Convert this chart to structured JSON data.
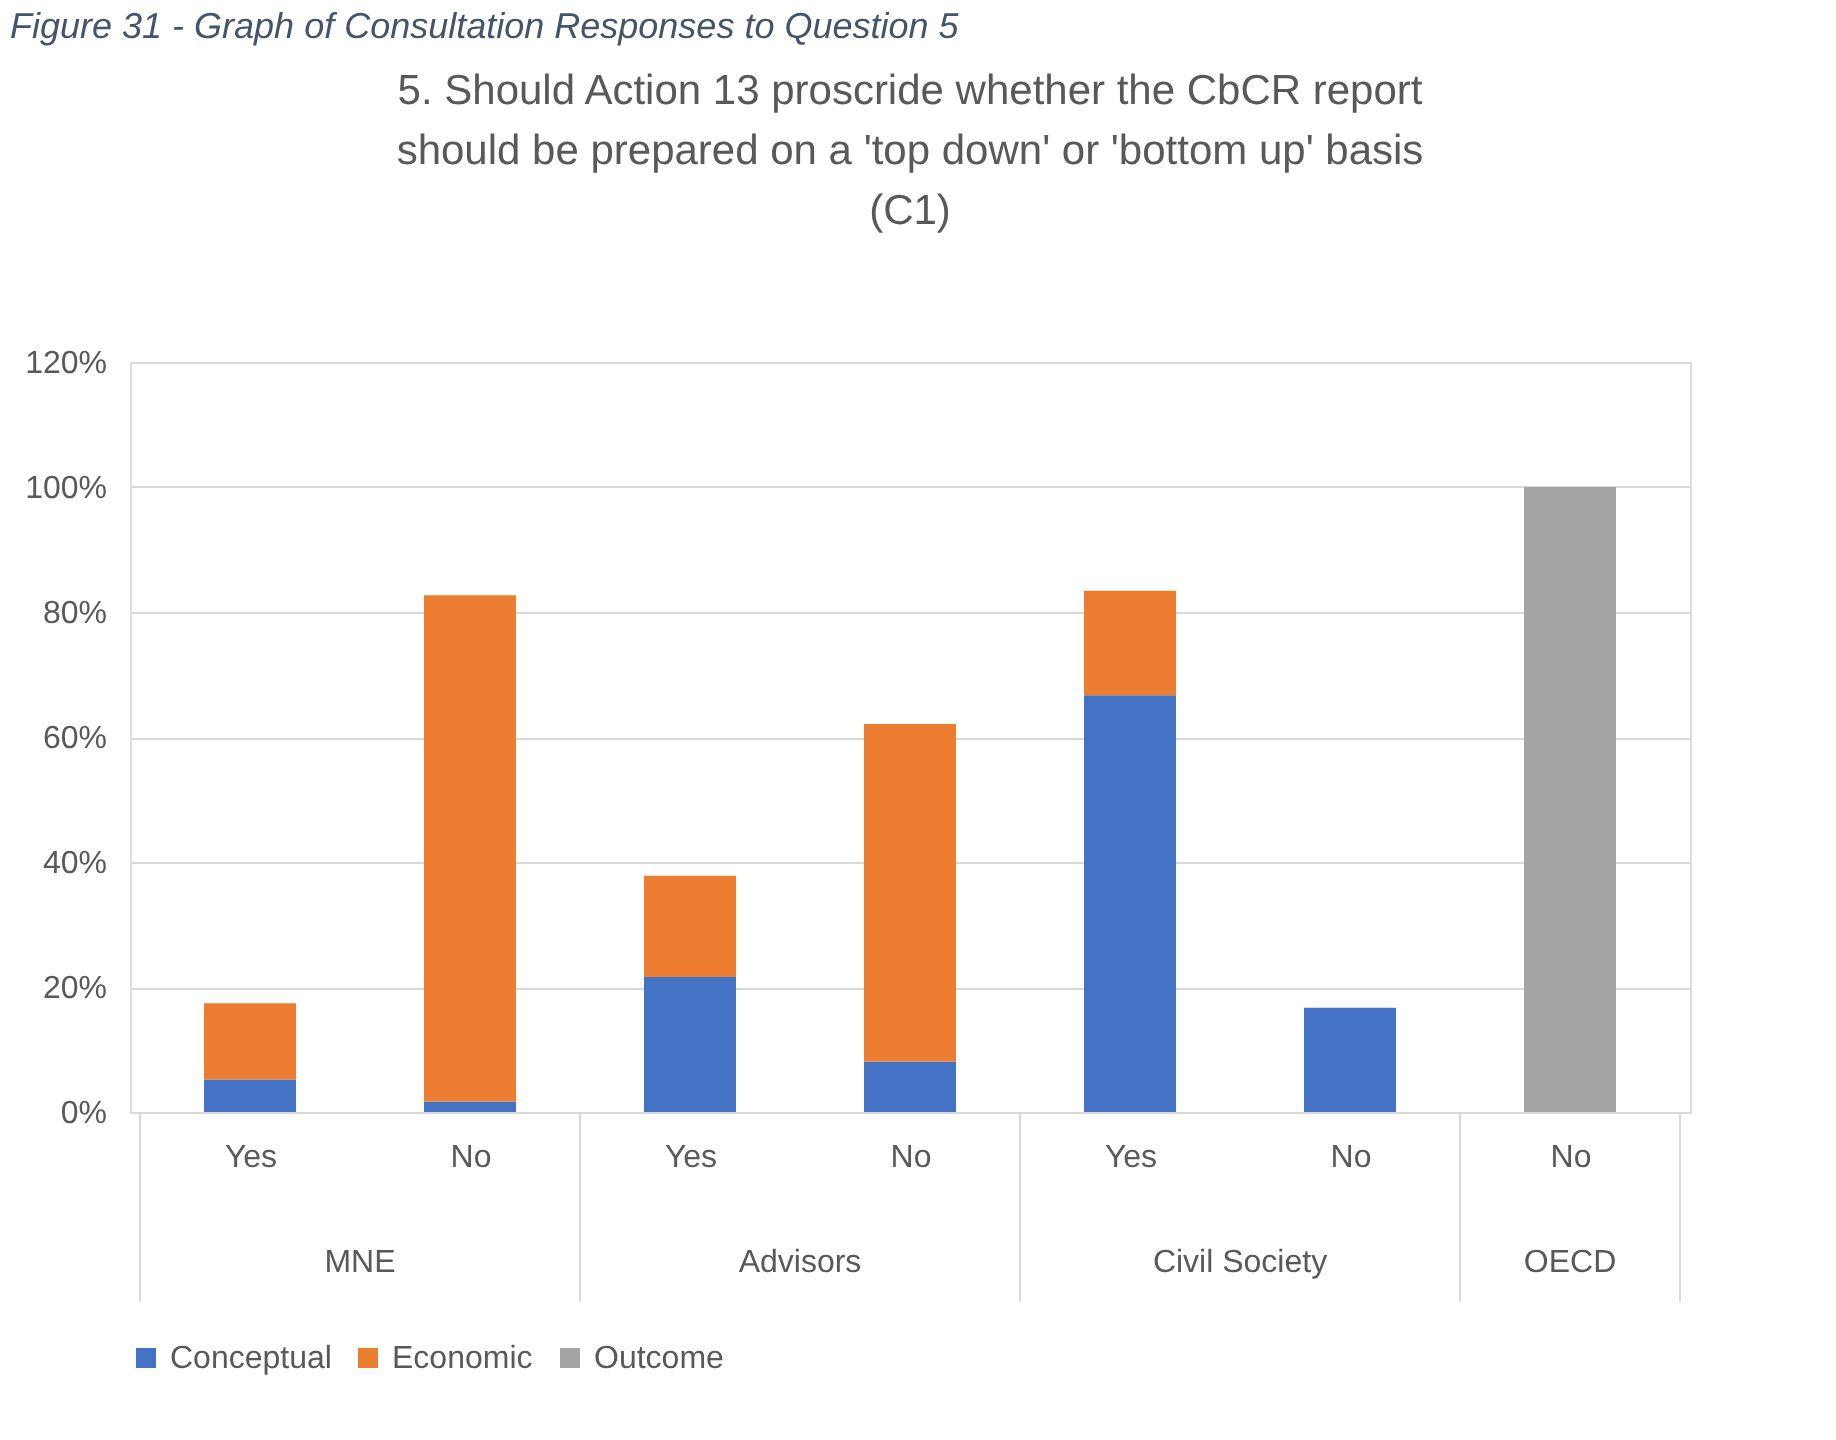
{
  "chart_data": {
    "type": "bar",
    "stacked": true,
    "title": "5. Should Action 13 proscride whether the CbCR report should be prepared on a 'top down' or 'bottom up' basis (C1)",
    "categories": [
      "Yes",
      "No",
      "Yes",
      "No",
      "Yes",
      "No",
      "No"
    ],
    "series": [
      {
        "name": "Conceptual",
        "color": "#4472c4",
        "values": [
          5.2,
          1.7,
          21.6,
          8.1,
          66.7,
          16.7,
          null
        ]
      },
      {
        "name": "Economic",
        "color": "#ed7d31",
        "values": [
          12.2,
          81.0,
          16.2,
          54.0,
          16.7,
          null,
          null
        ]
      },
      {
        "name": "Outcome",
        "color": "#a5a5a5",
        "values": [
          null,
          null,
          null,
          null,
          null,
          null,
          100
        ]
      }
    ],
    "ylim": [
      0,
      120
    ],
    "yticks": [
      {
        "value": 0,
        "label": "0%"
      },
      {
        "value": 20,
        "label": "20%"
      },
      {
        "value": 40,
        "label": "40%"
      },
      {
        "value": 60,
        "label": "60%"
      },
      {
        "value": 80,
        "label": "80%"
      },
      {
        "value": 100,
        "label": "100%"
      },
      {
        "value": 120,
        "label": "120%"
      }
    ],
    "grid": "y",
    "legend": "bottom",
    "annotations": [
      "Figure 31 - Graph of Consultation Responses to Question 5",
      "MNE",
      "Advisors",
      "Civil Society",
      "OECD"
    ]
  }
}
